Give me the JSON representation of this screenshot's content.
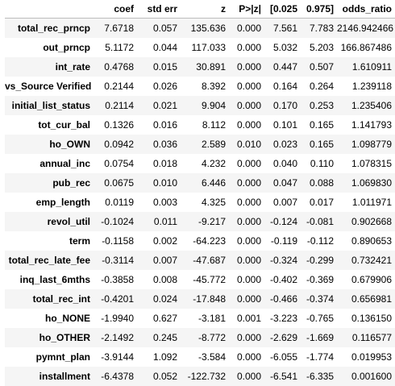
{
  "table": {
    "columns": [
      "",
      "coef",
      "std err",
      "z",
      "P>|z|",
      "[0.025",
      "0.975]",
      "odds_ratio"
    ],
    "rows": [
      {
        "name": "total_rec_prncp",
        "coef": "7.6718",
        "std_err": "0.057",
        "z": "135.636",
        "p": "0.000",
        "lo": "7.561",
        "hi": "7.783",
        "odds_ratio": "2146.942466"
      },
      {
        "name": "out_prncp",
        "coef": "5.1172",
        "std_err": "0.044",
        "z": "117.033",
        "p": "0.000",
        "lo": "5.032",
        "hi": "5.203",
        "odds_ratio": "166.867486"
      },
      {
        "name": "int_rate",
        "coef": "0.4768",
        "std_err": "0.015",
        "z": "30.891",
        "p": "0.000",
        "lo": "0.447",
        "hi": "0.507",
        "odds_ratio": "1.610911"
      },
      {
        "name": "vs_Source Verified",
        "coef": "0.2144",
        "std_err": "0.026",
        "z": "8.392",
        "p": "0.000",
        "lo": "0.164",
        "hi": "0.264",
        "odds_ratio": "1.239118"
      },
      {
        "name": "initial_list_status",
        "coef": "0.2114",
        "std_err": "0.021",
        "z": "9.904",
        "p": "0.000",
        "lo": "0.170",
        "hi": "0.253",
        "odds_ratio": "1.235406"
      },
      {
        "name": "tot_cur_bal",
        "coef": "0.1326",
        "std_err": "0.016",
        "z": "8.112",
        "p": "0.000",
        "lo": "0.101",
        "hi": "0.165",
        "odds_ratio": "1.141793"
      },
      {
        "name": "ho_OWN",
        "coef": "0.0942",
        "std_err": "0.036",
        "z": "2.589",
        "p": "0.010",
        "lo": "0.023",
        "hi": "0.165",
        "odds_ratio": "1.098779"
      },
      {
        "name": "annual_inc",
        "coef": "0.0754",
        "std_err": "0.018",
        "z": "4.232",
        "p": "0.000",
        "lo": "0.040",
        "hi": "0.110",
        "odds_ratio": "1.078315"
      },
      {
        "name": "pub_rec",
        "coef": "0.0675",
        "std_err": "0.010",
        "z": "6.446",
        "p": "0.000",
        "lo": "0.047",
        "hi": "0.088",
        "odds_ratio": "1.069830"
      },
      {
        "name": "emp_length",
        "coef": "0.0119",
        "std_err": "0.003",
        "z": "4.325",
        "p": "0.000",
        "lo": "0.007",
        "hi": "0.017",
        "odds_ratio": "1.011971"
      },
      {
        "name": "revol_util",
        "coef": "-0.1024",
        "std_err": "0.011",
        "z": "-9.217",
        "p": "0.000",
        "lo": "-0.124",
        "hi": "-0.081",
        "odds_ratio": "0.902668"
      },
      {
        "name": "term",
        "coef": "-0.1158",
        "std_err": "0.002",
        "z": "-64.223",
        "p": "0.000",
        "lo": "-0.119",
        "hi": "-0.112",
        "odds_ratio": "0.890653"
      },
      {
        "name": "total_rec_late_fee",
        "coef": "-0.3114",
        "std_err": "0.007",
        "z": "-47.687",
        "p": "0.000",
        "lo": "-0.324",
        "hi": "-0.299",
        "odds_ratio": "0.732421"
      },
      {
        "name": "inq_last_6mths",
        "coef": "-0.3858",
        "std_err": "0.008",
        "z": "-45.772",
        "p": "0.000",
        "lo": "-0.402",
        "hi": "-0.369",
        "odds_ratio": "0.679906"
      },
      {
        "name": "total_rec_int",
        "coef": "-0.4201",
        "std_err": "0.024",
        "z": "-17.848",
        "p": "0.000",
        "lo": "-0.466",
        "hi": "-0.374",
        "odds_ratio": "0.656981"
      },
      {
        "name": "ho_NONE",
        "coef": "-1.9940",
        "std_err": "0.627",
        "z": "-3.181",
        "p": "0.001",
        "lo": "-3.223",
        "hi": "-0.765",
        "odds_ratio": "0.136150"
      },
      {
        "name": "ho_OTHER",
        "coef": "-2.1492",
        "std_err": "0.245",
        "z": "-8.772",
        "p": "0.000",
        "lo": "-2.629",
        "hi": "-1.669",
        "odds_ratio": "0.116577"
      },
      {
        "name": "pymnt_plan",
        "coef": "-3.9144",
        "std_err": "1.092",
        "z": "-3.584",
        "p": "0.000",
        "lo": "-6.055",
        "hi": "-1.774",
        "odds_ratio": "0.019953"
      },
      {
        "name": "installment",
        "coef": "-6.4378",
        "std_err": "0.052",
        "z": "-122.732",
        "p": "0.000",
        "lo": "-6.541",
        "hi": "-6.335",
        "odds_ratio": "0.001600"
      }
    ]
  }
}
